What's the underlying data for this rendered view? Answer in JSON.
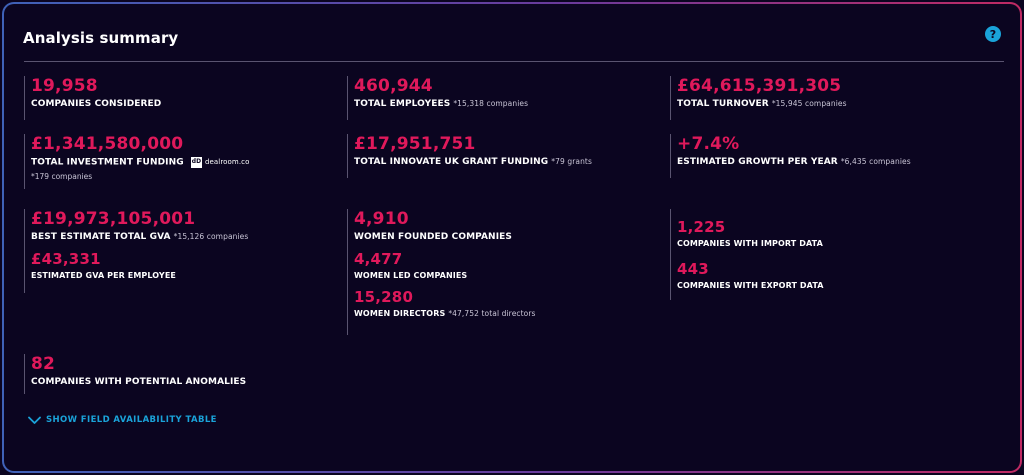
{
  "header": {
    "title": "Analysis summary",
    "help_symbol": "?"
  },
  "metrics": {
    "companies_considered": {
      "value": "19,958",
      "label": "COMPANIES CONSIDERED"
    },
    "total_employees": {
      "value": "460,944",
      "label": "TOTAL EMPLOYEES",
      "note": "*15,318 companies"
    },
    "total_turnover": {
      "value": "£64,615,391,305",
      "label": "TOTAL TURNOVER",
      "note": "*15,945 companies"
    },
    "investment_funding": {
      "value": "£1,341,580,000",
      "label": "TOTAL INVESTMENT FUNDING",
      "source_logo_text": "dealroom.co",
      "source_logo_mark": "dD",
      "note": "*179 companies"
    },
    "innovate_uk_grant": {
      "value": "£17,951,751",
      "label": "TOTAL INNOVATE UK GRANT FUNDING",
      "note": "*79 grants"
    },
    "growth_per_year": {
      "value": "+7.4%",
      "label": "ESTIMATED GROWTH PER YEAR",
      "note": "*6,435 companies"
    },
    "total_gva": {
      "value": "£19,973,105,001",
      "label": "BEST ESTIMATE TOTAL GVA",
      "note": "*15,126 companies"
    },
    "gva_per_employee": {
      "value": "£43,331",
      "label": "ESTIMATED GVA PER EMPLOYEE"
    },
    "women_founded": {
      "value": "4,910",
      "label": "WOMEN FOUNDED COMPANIES"
    },
    "women_led": {
      "value": "4,477",
      "label": "WOMEN LED COMPANIES"
    },
    "women_directors": {
      "value": "15,280",
      "label": "WOMEN DIRECTORS",
      "note": "*47,752 total directors"
    },
    "import_data": {
      "value": "1,225",
      "label": "COMPANIES WITH IMPORT DATA"
    },
    "export_data": {
      "value": "443",
      "label": "COMPANIES WITH EXPORT DATA"
    },
    "anomalies": {
      "value": "82",
      "label": "COMPANIES WITH POTENTIAL ANOMALIES"
    }
  },
  "footer": {
    "toggle_label": "SHOW FIELD AVAILABILITY TABLE",
    "toggle_icon": "chevron-down-icon"
  },
  "colors": {
    "background": "#0b0520",
    "value_accent": "#e0195b",
    "link_accent": "#1aa3d9"
  }
}
